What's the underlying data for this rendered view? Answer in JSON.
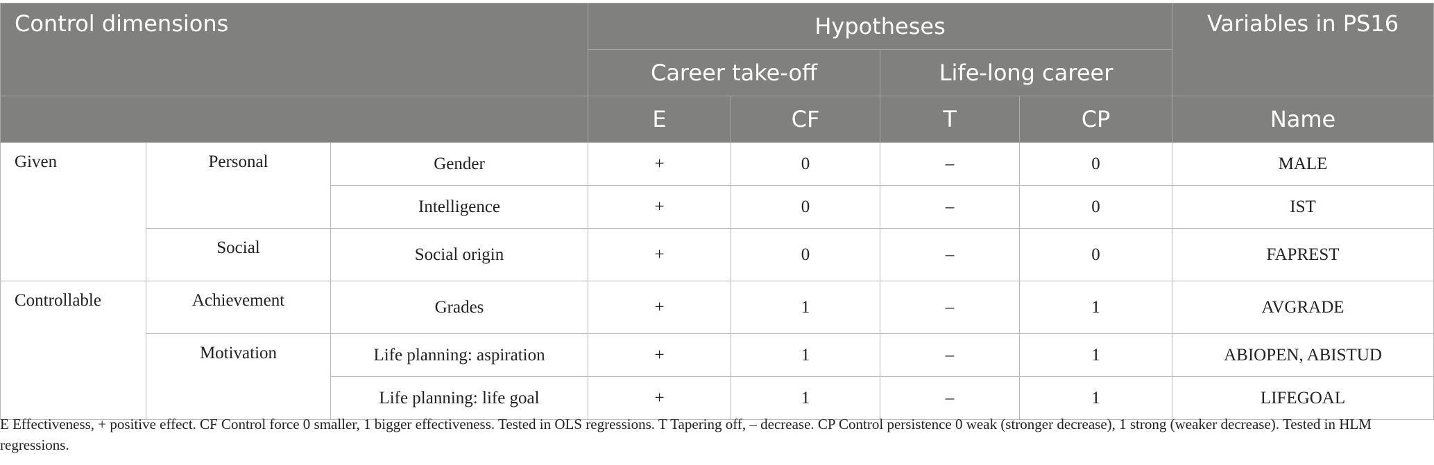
{
  "header": {
    "control_dimensions": "Control dimensions",
    "hypotheses": "Hypotheses",
    "variables_in_ps16": "Variables in PS16",
    "career_takeoff": "Career take-off",
    "lifelong_career": "Life-long career",
    "col_e": "E",
    "col_cf": "CF",
    "col_t": "T",
    "col_cp": "CP",
    "col_name": "Name"
  },
  "groups": {
    "given": "Given",
    "controllable": "Controllable",
    "personal": "Personal",
    "social": "Social",
    "achievement": "Achievement",
    "motivation": "Motivation"
  },
  "rows": [
    {
      "dimension": "Gender",
      "e": "+",
      "cf": "0",
      "t": "–",
      "cp": "0",
      "name": "MALE"
    },
    {
      "dimension": "Intelligence",
      "e": "+",
      "cf": "0",
      "t": "–",
      "cp": "0",
      "name": "IST"
    },
    {
      "dimension": "Social origin",
      "e": "+",
      "cf": "0",
      "t": "–",
      "cp": "0",
      "name": "FAPREST"
    },
    {
      "dimension": "Grades",
      "e": "+",
      "cf": "1",
      "t": "–",
      "cp": "1",
      "name": "AVGRADE"
    },
    {
      "dimension": "Life planning: aspiration",
      "e": "+",
      "cf": "1",
      "t": "–",
      "cp": "1",
      "name": "ABIOPEN, ABISTUD"
    },
    {
      "dimension": "Life planning: life goal",
      "e": "+",
      "cf": "1",
      "t": "–",
      "cp": "1",
      "name": "LIFEGOAL"
    }
  ],
  "footnote": "E Effectiveness, + positive effect. CF Control force 0 smaller, 1 bigger effectiveness. Tested in OLS regressions. T Tapering off, – decrease. CP Control persistence 0 weak (stronger decrease), 1 strong (weaker decrease). Tested in HLM regressions."
}
